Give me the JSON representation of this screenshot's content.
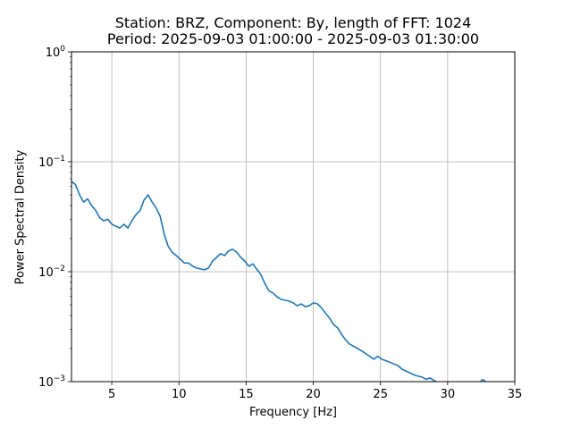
{
  "chart_data": {
    "type": "line",
    "title": "Station: BRZ, Component: By, length of FFT: 1024",
    "subtitle": "Period: 2025-09-03 01:00:00 - 2025-09-03 01:30:00",
    "xlabel": "Frequency [Hz]",
    "ylabel": "Power Spectral Density",
    "xlim": [
      2,
      35
    ],
    "ylim": [
      0.001,
      1
    ],
    "yscale": "log",
    "grid": true,
    "x_ticks": [
      5,
      10,
      15,
      20,
      25,
      30,
      35
    ],
    "x_tick_labels": [
      "5",
      "10",
      "15",
      "20",
      "25",
      "30",
      "35"
    ],
    "y_ticks": [
      0.001,
      0.01,
      0.1,
      1
    ],
    "y_tick_labels": [
      {
        "base": "10",
        "exp": "−3"
      },
      {
        "base": "10",
        "exp": "−2"
      },
      {
        "base": "10",
        "exp": "−1"
      },
      {
        "base": "10",
        "exp": "0"
      }
    ],
    "series": [
      {
        "color": "#1f77b4",
        "x": [
          2.0,
          2.3,
          2.6,
          2.9,
          3.2,
          3.5,
          3.8,
          4.1,
          4.4,
          4.7,
          5.0,
          5.3,
          5.6,
          5.9,
          6.2,
          6.5,
          6.8,
          7.1,
          7.4,
          7.7,
          8.0,
          8.3,
          8.6,
          8.9,
          9.2,
          9.5,
          9.8,
          10.1,
          10.4,
          10.7,
          11.0,
          11.3,
          11.6,
          11.9,
          12.2,
          12.5,
          12.8,
          13.1,
          13.4,
          13.7,
          14.0,
          14.3,
          14.6,
          14.9,
          15.2,
          15.5,
          15.8,
          16.1,
          16.4,
          16.7,
          17.0,
          17.3,
          17.6,
          17.9,
          18.2,
          18.5,
          18.8,
          19.1,
          19.4,
          19.7,
          20.0,
          20.3,
          20.6,
          20.9,
          21.2,
          21.5,
          21.8,
          22.1,
          22.4,
          22.7,
          23.0,
          23.3,
          23.6,
          23.9,
          24.2,
          24.5,
          24.8,
          25.1,
          25.4,
          25.7,
          26.0,
          26.3,
          26.6,
          26.9,
          27.2,
          27.5,
          27.8,
          28.1,
          28.4,
          28.7,
          29.0,
          29.3,
          29.6
        ],
        "y": [
          0.066,
          0.062,
          0.05,
          0.043,
          0.046,
          0.04,
          0.036,
          0.031,
          0.029,
          0.03,
          0.027,
          0.026,
          0.025,
          0.027,
          0.025,
          0.029,
          0.033,
          0.036,
          0.045,
          0.05,
          0.043,
          0.038,
          0.032,
          0.022,
          0.017,
          0.015,
          0.014,
          0.013,
          0.012,
          0.012,
          0.0113,
          0.0108,
          0.0106,
          0.0104,
          0.0108,
          0.0125,
          0.0135,
          0.0146,
          0.014,
          0.0155,
          0.016,
          0.015,
          0.0135,
          0.0125,
          0.0112,
          0.0118,
          0.0105,
          0.0094,
          0.0078,
          0.0067,
          0.0064,
          0.0059,
          0.0056,
          0.0055,
          0.0054,
          0.0052,
          0.0049,
          0.0051,
          0.0048,
          0.0049,
          0.0052,
          0.0051,
          0.0047,
          0.0042,
          0.0038,
          0.0033,
          0.0031,
          0.0027,
          0.0024,
          0.0022,
          0.0021,
          0.002,
          0.0019,
          0.0018,
          0.0017,
          0.0016,
          0.0017,
          0.0016,
          0.00155,
          0.0015,
          0.00145,
          0.0014,
          0.0013,
          0.00125,
          0.0012,
          0.00115,
          0.00112,
          0.0011,
          0.00105,
          0.00108,
          0.00102,
          0.00098,
          0.00094
        ]
      },
      {
        "color": "#1f77b4",
        "x": [
          32.5,
          32.6,
          32.7,
          32.8
        ],
        "y": [
          0.00102,
          0.00104,
          0.00103,
          0.00101
        ]
      }
    ]
  }
}
